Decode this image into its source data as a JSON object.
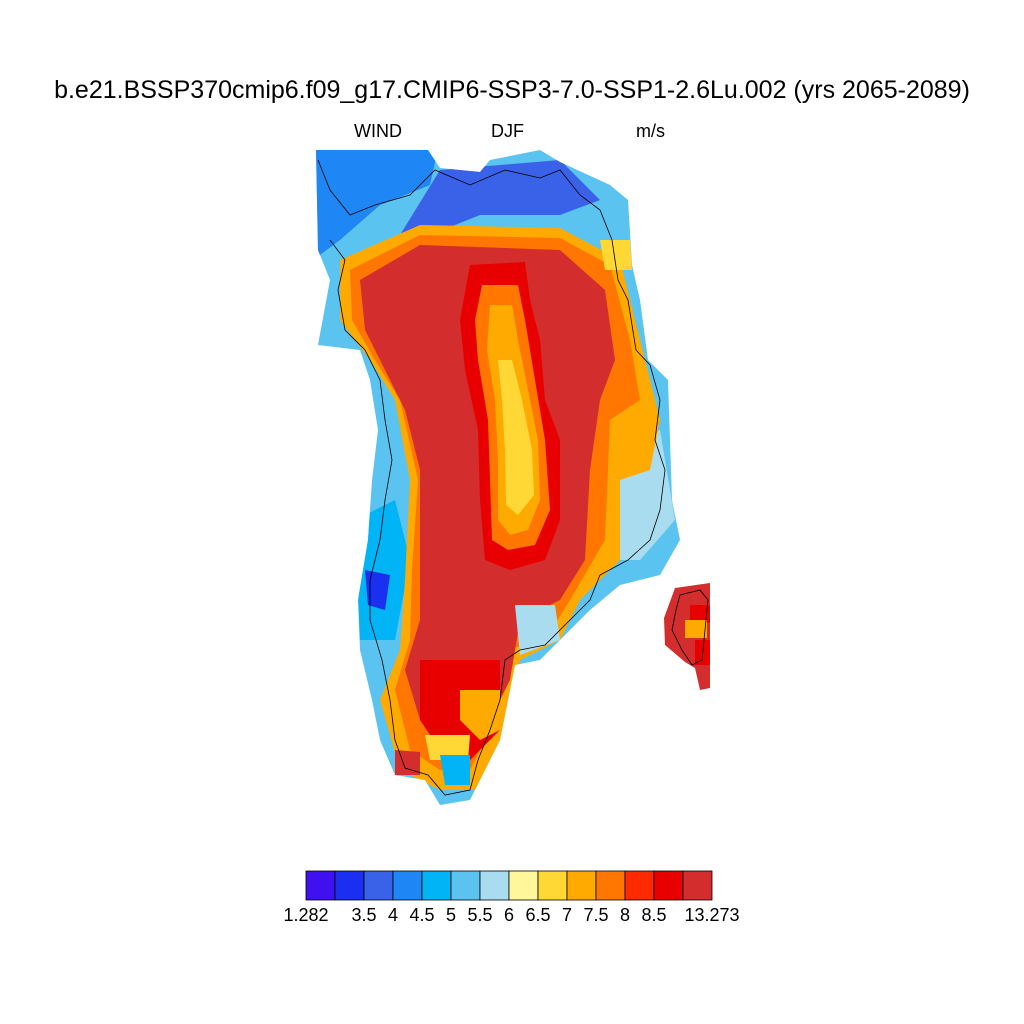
{
  "title": "b.e21.BSSP370cmip6.f09_g17.CMIP6-SSP3-7.0-SSP1-2.6Lu.002 (yrs 2065-2089)",
  "subtitle": {
    "left": "WIND",
    "center": "DJF",
    "right": "m/s"
  },
  "colorbar": {
    "colors": [
      "#3f10f0",
      "#1a2ff0",
      "#3a62e8",
      "#1e87f5",
      "#00b4f5",
      "#5ac3f0",
      "#aadcf0",
      "#fff799",
      "#ffd836",
      "#ffaa00",
      "#ff7700",
      "#ff2a00",
      "#e80000",
      "#d42d2d"
    ],
    "labels": [
      "1.282",
      "3.5",
      "4",
      "4.5",
      "5",
      "5.5",
      "6",
      "6.5",
      "7",
      "7.5",
      "8",
      "8.5",
      "13.273"
    ]
  },
  "map": {
    "variable": "WIND",
    "season": "DJF",
    "units": "m/s",
    "region": "Greenland",
    "pattern": "ice-sheet interior highest (8.5-13.3 m/s), local minima 6.5-7.5 along central spine, coastal margins 1.3-6 m/s"
  }
}
